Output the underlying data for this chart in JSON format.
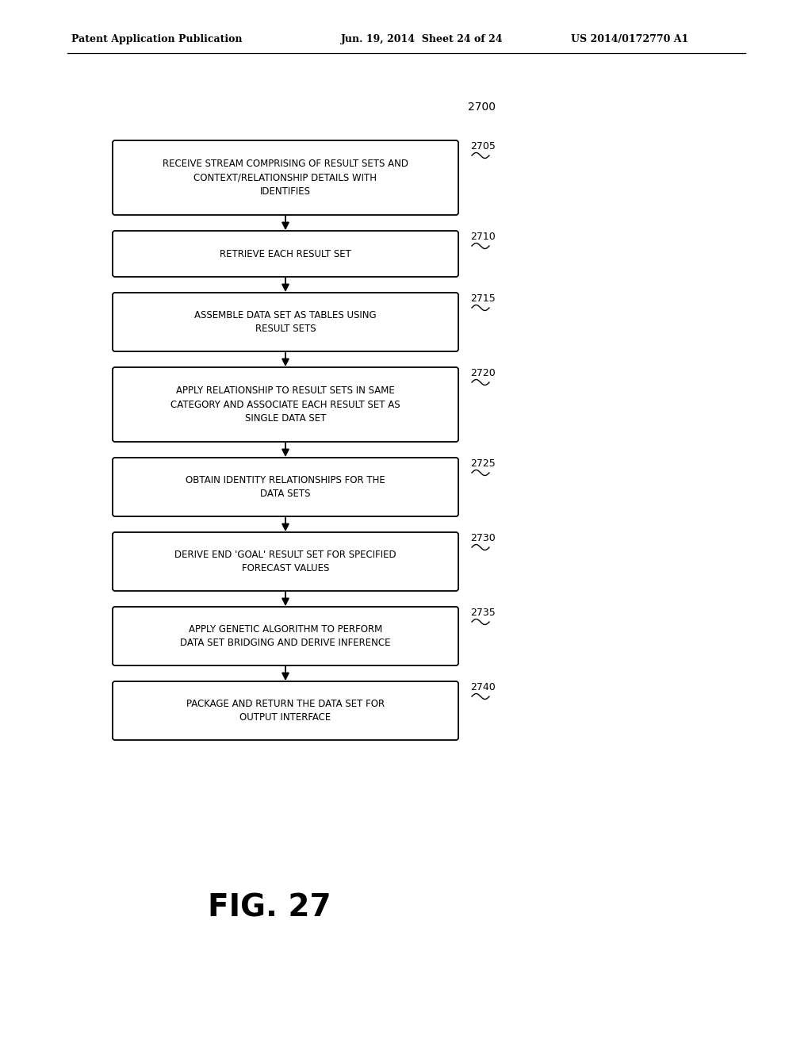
{
  "header_left": "Patent Application Publication",
  "header_mid": "Jun. 19, 2014  Sheet 24 of 24",
  "header_right": "US 2014/0172770 A1",
  "figure_label": "FIG. 27",
  "diagram_label": "2700",
  "boxes": [
    {
      "id": "2705",
      "label": "RECEIVE STREAM COMPRISING OF RESULT SETS AND\nCONTEXT/RELATIONSHIP DETAILS WITH\nIDENTIFIES",
      "lines": 3
    },
    {
      "id": "2710",
      "label": "RETRIEVE EACH RESULT SET",
      "lines": 1
    },
    {
      "id": "2715",
      "label": "ASSEMBLE DATA SET AS TABLES USING\nRESULT SETS",
      "lines": 2
    },
    {
      "id": "2720",
      "label": "APPLY RELATIONSHIP TO RESULT SETS IN SAME\nCATEGORY AND ASSOCIATE EACH RESULT SET AS\nSINGLE DATA SET",
      "lines": 3
    },
    {
      "id": "2725",
      "label": "OBTAIN IDENTITY RELATIONSHIPS FOR THE\nDATA SETS",
      "lines": 2
    },
    {
      "id": "2730",
      "label": "DERIVE END 'GOAL' RESULT SET FOR SPECIFIED\nFORECAST VALUES",
      "lines": 2
    },
    {
      "id": "2735",
      "label": "APPLY GENETIC ALGORITHM TO PERFORM\nDATA SET BRIDGING AND DERIVE INFERENCE",
      "lines": 2
    },
    {
      "id": "2740",
      "label": "PACKAGE AND RETURN THE DATA SET FOR\nOUTPUT INTERFACE",
      "lines": 2
    }
  ],
  "bg_color": "#ffffff",
  "box_edge_color": "#000000",
  "text_color": "#000000",
  "arrow_color": "#000000"
}
